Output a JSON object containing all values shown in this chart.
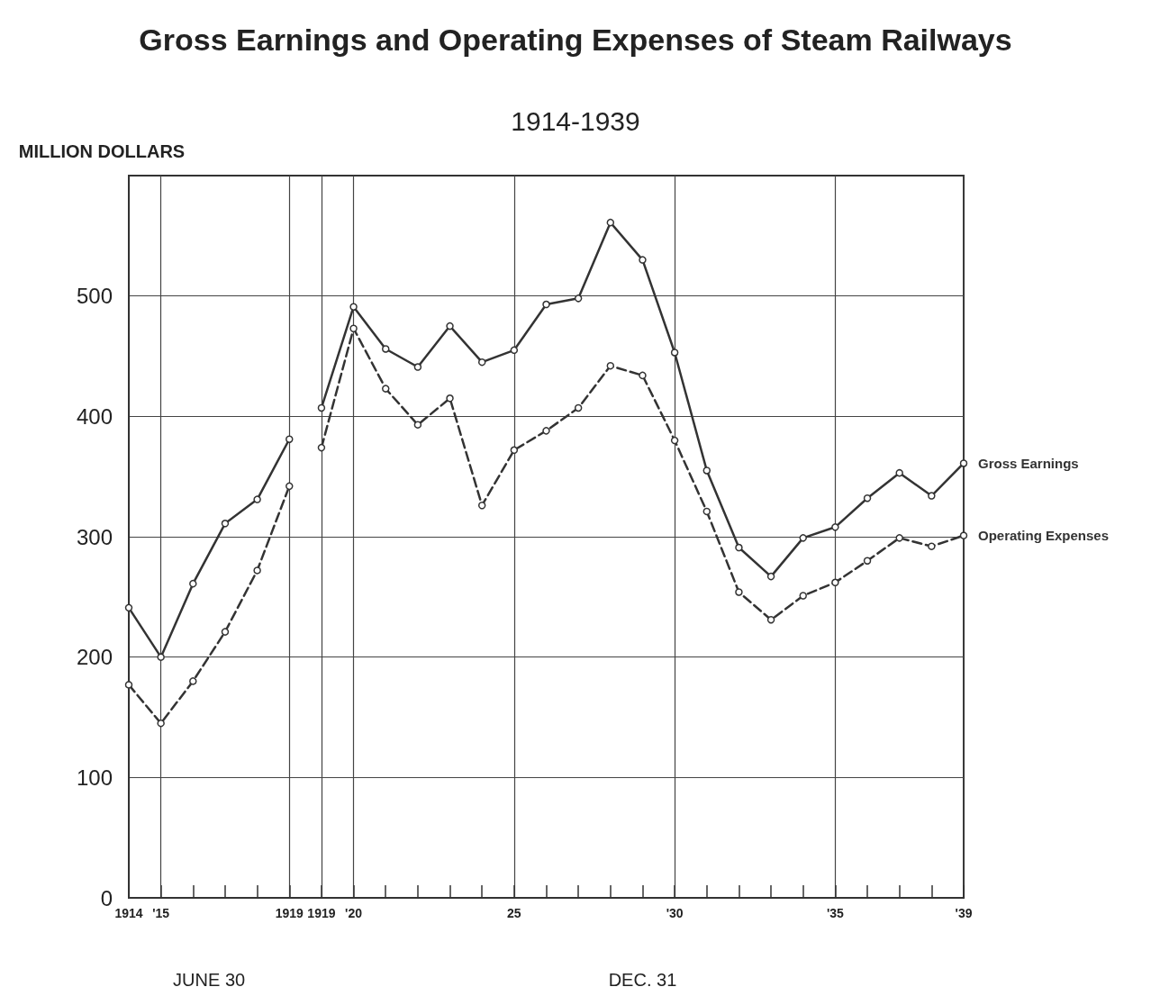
{
  "chart_data": {
    "type": "line",
    "title": "Gross Earnings and Operating Expenses of Steam Railways",
    "subtitle": "1914-1939",
    "ylabel": "MILLION DOLLARS",
    "categories": [
      "1914",
      "'15",
      null,
      null,
      null,
      "1919",
      "1919",
      "'20",
      null,
      null,
      null,
      null,
      "25",
      null,
      null,
      null,
      null,
      "'30",
      null,
      null,
      null,
      null,
      "'35",
      null,
      null,
      null,
      "'39"
    ],
    "series": [
      {
        "color": "#333333",
        "line_style": "solid",
        "values": [
          241,
          200,
          261,
          311,
          331,
          381,
          null,
          null,
          null,
          null,
          null,
          null,
          null,
          null,
          null,
          null,
          null,
          null,
          null,
          null,
          null,
          null,
          null,
          null,
          null,
          null,
          null
        ]
      },
      {
        "name": "Gross Earnings",
        "color": "#333333",
        "line_style": "solid",
        "values": [
          null,
          null,
          null,
          null,
          null,
          null,
          407,
          491,
          456,
          441,
          475,
          445,
          455,
          493,
          498,
          561,
          530,
          453,
          355,
          291,
          267,
          299,
          308,
          332,
          353,
          334,
          361
        ]
      },
      {
        "color": "#333333",
        "line_style": "dashed",
        "values": [
          177,
          145,
          180,
          221,
          272,
          342,
          null,
          null,
          null,
          null,
          null,
          null,
          null,
          null,
          null,
          null,
          null,
          null,
          null,
          null,
          null,
          null,
          null,
          null,
          null,
          null,
          null
        ]
      },
      {
        "name": "Operating Expenses",
        "color": "#333333",
        "line_style": "dashed",
        "values": [
          null,
          null,
          null,
          null,
          null,
          null,
          374,
          473,
          423,
          393,
          415,
          326,
          372,
          388,
          407,
          442,
          434,
          380,
          321,
          254,
          231,
          251,
          262,
          280,
          299,
          292,
          301
        ]
      }
    ],
    "annotations": [
      "JUNE 30",
      "DEC. 31"
    ],
    "ylim": [
      0,
      600
    ],
    "yticks": [
      0,
      100,
      200,
      300,
      400,
      500
    ],
    "grid": true,
    "legend": false,
    "marker": "circle"
  }
}
